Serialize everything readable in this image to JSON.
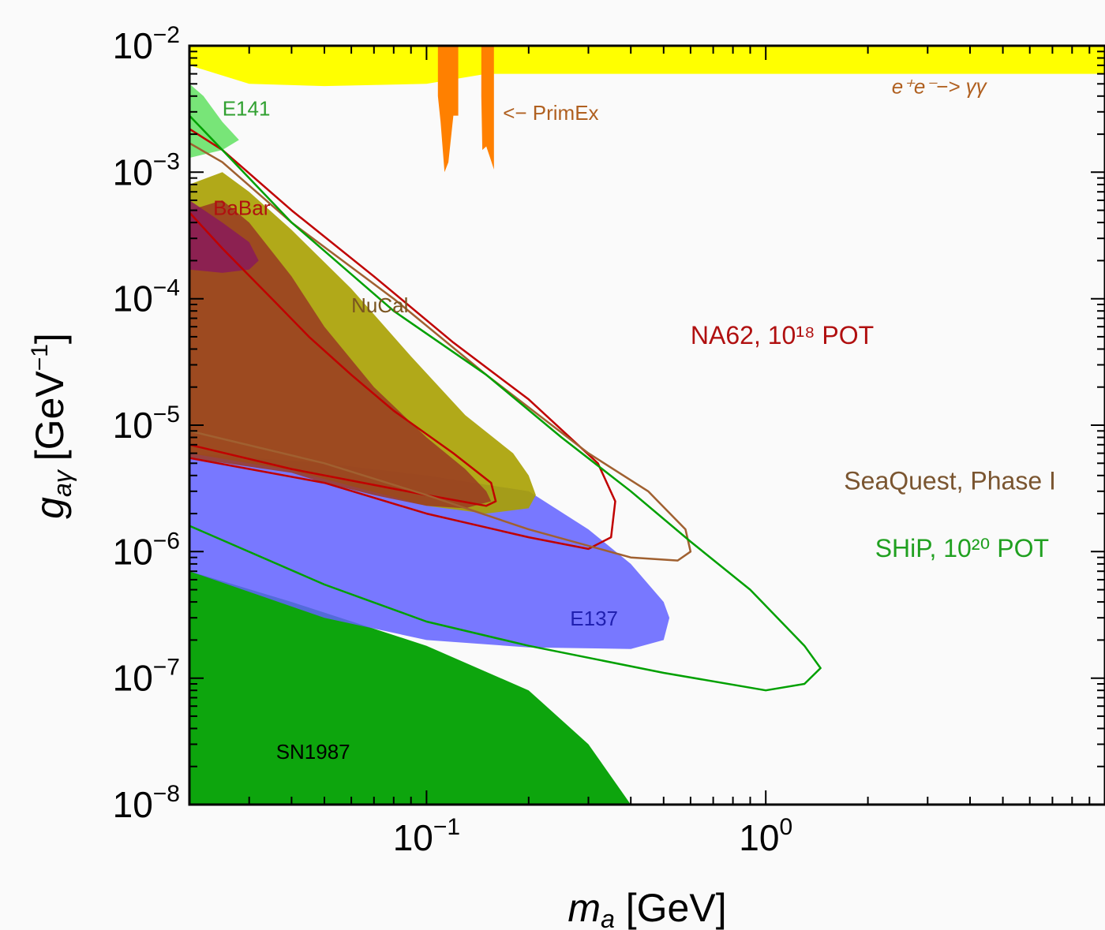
{
  "chart_data": {
    "type": "area",
    "x_scale": "log",
    "y_scale": "log",
    "xlim": [
      0.02,
      10
    ],
    "ylim": [
      1e-08,
      0.01
    ],
    "grid": false,
    "xlabel_main": "m",
    "xlabel_sub": "a",
    "xlabel_unit": " [GeV]",
    "ylabel_main": "g",
    "ylabel_sub": "aγ",
    "ylabel_unit": "[GeV",
    "ylabel_exp": "−1",
    "ylabel_close": "]",
    "x_ticks": [
      {
        "base": "10",
        "exp": "−1",
        "value": 0.1
      },
      {
        "base": "10",
        "exp": "0",
        "value": 1
      }
    ],
    "y_ticks": [
      {
        "base": "10",
        "exp": "−2",
        "value": 0.01
      },
      {
        "base": "10",
        "exp": "−3",
        "value": 0.001
      },
      {
        "base": "10",
        "exp": "−4",
        "value": 0.0001
      },
      {
        "base": "10",
        "exp": "−5",
        "value": 1e-05
      },
      {
        "base": "10",
        "exp": "−6",
        "value": 1e-06
      },
      {
        "base": "10",
        "exp": "−7",
        "value": 1e-07
      },
      {
        "base": "10",
        "exp": "−8",
        "value": 1e-08
      }
    ],
    "regions": [
      {
        "id": "sn1987",
        "label": "SN1987",
        "color": "#00a000",
        "opacity": 0.95,
        "points": [
          [
            0.02,
            1e-08
          ],
          [
            0.02,
            7e-07
          ],
          [
            0.04,
            4e-07
          ],
          [
            0.1,
            1.8e-07
          ],
          [
            0.2,
            8e-08
          ],
          [
            0.3,
            3e-08
          ],
          [
            0.4,
            1e-08
          ]
        ]
      },
      {
        "id": "e137",
        "label": "E137",
        "color": "#6060ff",
        "opacity": 0.85,
        "points": [
          [
            0.02,
            6e-06
          ],
          [
            0.05,
            5e-06
          ],
          [
            0.1,
            4e-06
          ],
          [
            0.2,
            3e-06
          ],
          [
            0.3,
            1.5e-06
          ],
          [
            0.4,
            8e-07
          ],
          [
            0.5,
            4e-07
          ],
          [
            0.52,
            3e-07
          ],
          [
            0.5,
            2e-07
          ],
          [
            0.4,
            1.7e-07
          ],
          [
            0.2,
            1.75e-07
          ],
          [
            0.1,
            2e-07
          ],
          [
            0.05,
            3e-07
          ],
          [
            0.02,
            7e-07
          ]
        ]
      },
      {
        "id": "nucal",
        "label": "NuCal",
        "color": "#a8a000",
        "opacity": 0.9,
        "points": [
          [
            0.02,
            0.0008
          ],
          [
            0.025,
            0.001
          ],
          [
            0.03,
            0.0007
          ],
          [
            0.04,
            0.00035
          ],
          [
            0.06,
            0.00012
          ],
          [
            0.09,
            3.5e-05
          ],
          [
            0.13,
            1.2e-05
          ],
          [
            0.18,
            6e-06
          ],
          [
            0.2,
            4e-06
          ],
          [
            0.21,
            2.8e-06
          ],
          [
            0.2,
            2.2e-06
          ],
          [
            0.15,
            2e-06
          ],
          [
            0.1,
            2.3e-06
          ],
          [
            0.06,
            3.3e-06
          ],
          [
            0.04,
            4.4e-06
          ],
          [
            0.02,
            6e-06
          ]
        ]
      },
      {
        "id": "nucal-dark",
        "label": "",
        "color": "#9a3a22",
        "opacity": 0.85,
        "points": [
          [
            0.02,
            0.0005
          ],
          [
            0.025,
            0.0006
          ],
          [
            0.03,
            0.0004
          ],
          [
            0.04,
            0.00015
          ],
          [
            0.05,
            6e-05
          ],
          [
            0.07,
            2e-05
          ],
          [
            0.1,
            8e-06
          ],
          [
            0.13,
            4.5e-06
          ],
          [
            0.15,
            3e-06
          ],
          [
            0.155,
            2.5e-06
          ],
          [
            0.13,
            2.2e-06
          ],
          [
            0.1,
            2.3e-06
          ],
          [
            0.07,
            2.8e-06
          ],
          [
            0.05,
            3.5e-06
          ],
          [
            0.04,
            4.2e-06
          ],
          [
            0.02,
            5.5e-06
          ]
        ]
      },
      {
        "id": "babar",
        "label": "BaBar",
        "color": "#8a1a5a",
        "opacity": 0.85,
        "points": [
          [
            0.02,
            0.0006
          ],
          [
            0.025,
            0.0004
          ],
          [
            0.03,
            0.00028
          ],
          [
            0.032,
            0.0002
          ],
          [
            0.03,
            0.00017
          ],
          [
            0.025,
            0.00016
          ],
          [
            0.02,
            0.00017
          ]
        ]
      },
      {
        "id": "e141",
        "label": "E141",
        "color": "#60e060",
        "opacity": 0.85,
        "points": [
          [
            0.02,
            0.005
          ],
          [
            0.022,
            0.004
          ],
          [
            0.025,
            0.0025
          ],
          [
            0.028,
            0.0018
          ],
          [
            0.025,
            0.0015
          ],
          [
            0.02,
            0.0013
          ]
        ]
      },
      {
        "id": "ee",
        "label": "e⁺e⁻−> γγ",
        "color": "#ffff00",
        "opacity": 1,
        "points": [
          [
            0.02,
            0.01
          ],
          [
            10,
            0.01
          ],
          [
            10,
            0.006
          ],
          [
            0.15,
            0.006
          ],
          [
            0.1,
            0.005
          ],
          [
            0.05,
            0.0048
          ],
          [
            0.03,
            0.005
          ],
          [
            0.02,
            0.007
          ]
        ]
      },
      {
        "id": "primex-1",
        "label": "",
        "color": "#ff8000",
        "opacity": 1,
        "points": [
          [
            0.108,
            0.01
          ],
          [
            0.124,
            0.01
          ],
          [
            0.124,
            0.0028
          ],
          [
            0.12,
            0.0028
          ],
          [
            0.116,
            0.0012
          ],
          [
            0.113,
            0.001
          ],
          [
            0.11,
            0.0025
          ],
          [
            0.108,
            0.004
          ]
        ]
      },
      {
        "id": "primex-2",
        "label": "",
        "color": "#ff8000",
        "opacity": 1,
        "points": [
          [
            0.145,
            0.01
          ],
          [
            0.158,
            0.01
          ],
          [
            0.158,
            0.00105
          ],
          [
            0.154,
            0.0013
          ],
          [
            0.15,
            0.0016
          ],
          [
            0.146,
            0.0015
          ],
          [
            0.145,
            0.004
          ]
        ]
      }
    ],
    "contours": [
      {
        "id": "na62-inner",
        "color": "#c00000",
        "width": 2.5,
        "closed": false,
        "points": [
          [
            0.02,
            5.5e-06
          ],
          [
            0.05,
            3.5e-06
          ],
          [
            0.1,
            2e-06
          ],
          [
            0.2,
            1.3e-06
          ],
          [
            0.3,
            1.05e-06
          ],
          [
            0.35,
            1.3e-06
          ],
          [
            0.36,
            2.5e-06
          ],
          [
            0.32,
            5e-06
          ],
          [
            0.2,
            1.6e-05
          ],
          [
            0.12,
            4.5e-05
          ],
          [
            0.07,
            0.00015
          ],
          [
            0.04,
            0.0005
          ],
          [
            0.025,
            0.0015
          ],
          [
            0.02,
            0.0022
          ]
        ]
      },
      {
        "id": "na62-outer",
        "color": "#c00000",
        "width": 2.5,
        "closed": false,
        "points": [
          [
            0.02,
            7e-06
          ],
          [
            0.04,
            4.5e-06
          ],
          [
            0.1,
            2.8e-06
          ],
          [
            0.15,
            2.3e-06
          ],
          [
            0.16,
            2.5e-06
          ],
          [
            0.155,
            3.5e-06
          ],
          [
            0.12,
            6e-06
          ],
          [
            0.08,
            1.3e-05
          ],
          [
            0.06,
            2.5e-05
          ],
          [
            0.045,
            5e-05
          ],
          [
            0.035,
            0.0001
          ],
          [
            0.025,
            0.00025
          ],
          [
            0.02,
            0.00048
          ]
        ]
      },
      {
        "id": "seaquest",
        "color": "#a06030",
        "width": 2.5,
        "closed": false,
        "points": [
          [
            0.02,
            9e-06
          ],
          [
            0.05,
            5e-06
          ],
          [
            0.1,
            2.8e-06
          ],
          [
            0.2,
            1.5e-06
          ],
          [
            0.4,
            9e-07
          ],
          [
            0.55,
            8.5e-07
          ],
          [
            0.6,
            1e-06
          ],
          [
            0.58,
            1.5e-06
          ],
          [
            0.45,
            3e-06
          ],
          [
            0.3,
            6e-06
          ],
          [
            0.15,
            2.5e-05
          ],
          [
            0.08,
            0.0001
          ],
          [
            0.04,
            0.0004
          ],
          [
            0.025,
            0.0012
          ],
          [
            0.02,
            0.0017
          ]
        ]
      },
      {
        "id": "ship",
        "color": "#00a000",
        "width": 2.5,
        "closed": false,
        "points": [
          [
            0.02,
            1.6e-06
          ],
          [
            0.05,
            5.5e-07
          ],
          [
            0.1,
            2.8e-07
          ],
          [
            0.2,
            1.8e-07
          ],
          [
            0.5,
            1.1e-07
          ],
          [
            1.0,
            8e-08
          ],
          [
            1.3,
            9e-08
          ],
          [
            1.45,
            1.2e-07
          ],
          [
            1.3,
            1.8e-07
          ],
          [
            0.9,
            5e-07
          ],
          [
            0.6,
            1.2e-06
          ],
          [
            0.4,
            3e-06
          ],
          [
            0.25,
            8e-06
          ],
          [
            0.15,
            2.5e-05
          ],
          [
            0.08,
            8e-05
          ],
          [
            0.04,
            0.0004
          ],
          [
            0.025,
            0.0015
          ],
          [
            0.02,
            0.0028
          ]
        ]
      }
    ],
    "labels": [
      {
        "id": "e141",
        "text": "E141",
        "color": "#30a030",
        "x": 0.025,
        "y": 0.0028,
        "size": "small"
      },
      {
        "id": "primex",
        "text": "<− PrimEx",
        "color": "#b06020",
        "x": 0.168,
        "y": 0.0026,
        "size": "small"
      },
      {
        "id": "ee",
        "text": "e⁺e⁻−> γγ",
        "color": "#b06020",
        "x": 2.35,
        "y": 0.0042,
        "size": "small"
      },
      {
        "id": "babar",
        "text": "BaBar",
        "color": "#b01010",
        "x": 0.0235,
        "y": 0.00046,
        "size": "small"
      },
      {
        "id": "nucal",
        "text": "NuCal",
        "color": "#7a5520",
        "x": 0.06,
        "y": 7.8e-05,
        "size": "small"
      },
      {
        "id": "na62",
        "text": "NA62, 10¹⁸ POT",
        "color": "#b01010",
        "x": 0.6,
        "y": 4.4e-05,
        "size": "big"
      },
      {
        "id": "seaquest",
        "text": "SeaQuest, Phase I",
        "color": "#7a5530",
        "x": 1.7,
        "y": 3.1e-06,
        "size": "big"
      },
      {
        "id": "ship",
        "text": "SHiP, 10²⁰ POT",
        "color": "#20a020",
        "x": 2.1,
        "y": 9.1e-07,
        "size": "big"
      },
      {
        "id": "e137",
        "text": "E137",
        "color": "#2020b0",
        "x": 0.265,
        "y": 2.6e-07,
        "size": "small"
      },
      {
        "id": "sn1987",
        "text": "SN1987",
        "color": "#000000",
        "x": 0.036,
        "y": 2.3e-08,
        "size": "small"
      }
    ]
  }
}
